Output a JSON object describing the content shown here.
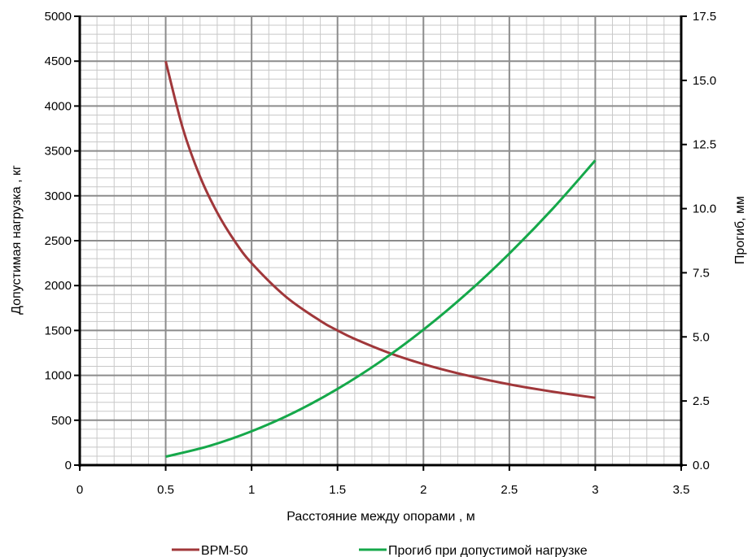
{
  "chart_data": {
    "type": "line",
    "title": "",
    "xlabel": "Расстояние между опорами , м",
    "ylabel_left": "Допустимая нагрузка , кг",
    "ylabel_right": "Прогиб, мм",
    "xlim": [
      0,
      3.5
    ],
    "ylim_left": [
      0,
      5000
    ],
    "ylim_right": [
      0,
      17.5
    ],
    "x_ticks": [
      "0",
      "0.5",
      "1",
      "1.5",
      "2",
      "2.5",
      "3",
      "3.5"
    ],
    "y_left_ticks": [
      "0",
      "500",
      "1000",
      "1500",
      "2000",
      "2500",
      "3000",
      "3500",
      "4000",
      "4500",
      "5000"
    ],
    "y_right_ticks": [
      "0.0",
      "2.5",
      "5.0",
      "7.5",
      "10.0",
      "12.5",
      "15.0",
      "17.5"
    ],
    "grid": true,
    "legend_position": "bottom",
    "series": [
      {
        "name": "ВРМ-50",
        "axis": "left",
        "color": "#a0373a",
        "x": [
          0.5,
          0.6,
          0.7,
          0.8,
          0.9,
          1.0,
          1.2,
          1.4,
          1.5,
          1.6,
          1.8,
          2.0,
          2.2,
          2.4,
          2.5,
          2.6,
          2.8,
          3.0
        ],
        "values": [
          4500,
          3750,
          3214,
          2813,
          2500,
          2250,
          1875,
          1607,
          1500,
          1406,
          1250,
          1125,
          1023,
          938,
          900,
          865,
          804,
          750
        ]
      },
      {
        "name": "Прогиб при допустимой нагрузке",
        "axis": "right",
        "color": "#15a84a",
        "x": [
          0.5,
          0.75,
          1.0,
          1.25,
          1.5,
          1.75,
          2.0,
          2.25,
          2.5,
          2.75,
          3.0
        ],
        "values": [
          0.33,
          0.74,
          1.32,
          2.06,
          2.97,
          4.04,
          5.28,
          6.68,
          8.25,
          9.98,
          11.88
        ]
      }
    ]
  }
}
